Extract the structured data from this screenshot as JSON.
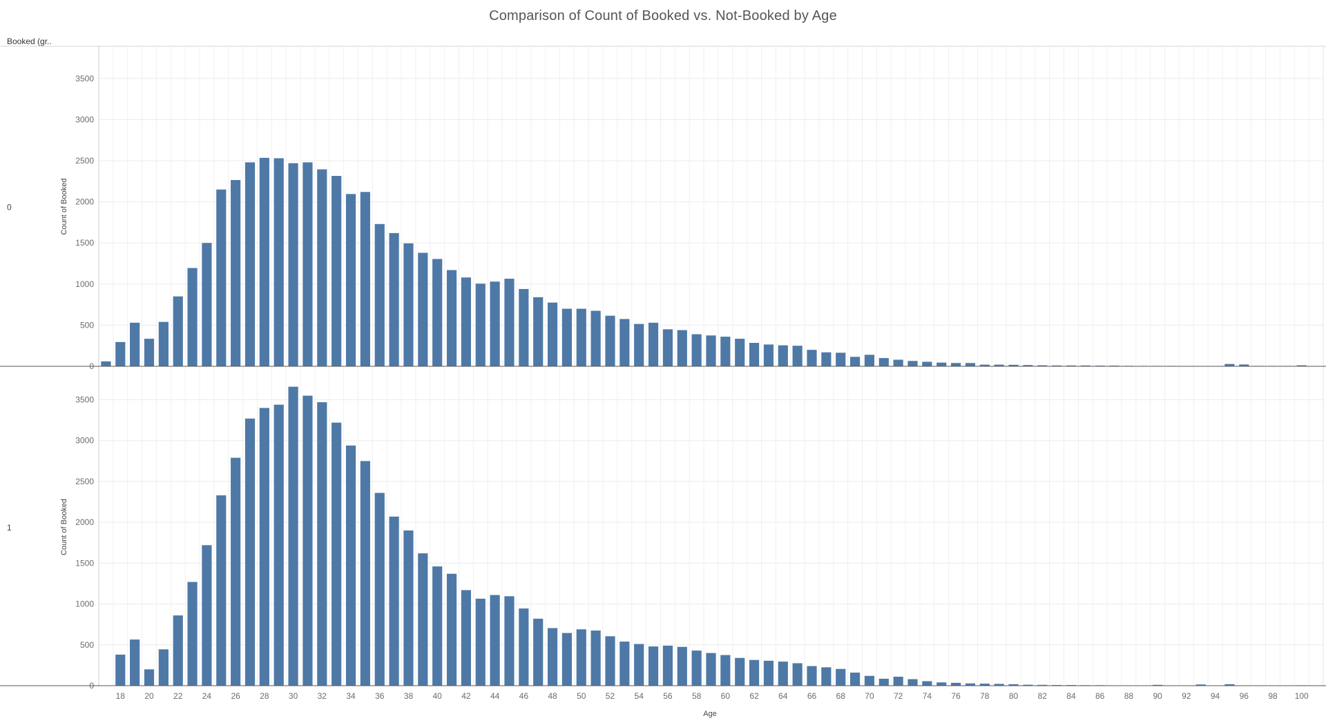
{
  "chart_data": {
    "type": "bar",
    "title": "Comparison of Count of Booked vs. Not-Booked by Age",
    "row_header": "Booked (gr..",
    "xlabel": "Age",
    "ylabel": "Count of Booked",
    "ylim": [
      0,
      3800
    ],
    "y_ticks": [
      0,
      500,
      1000,
      1500,
      2000,
      2500,
      3000,
      3500
    ],
    "grid": true,
    "bar_color": "#4e79a7",
    "x_min": 17,
    "x_max": 101,
    "x_ticks": [
      18,
      20,
      22,
      24,
      26,
      28,
      30,
      32,
      34,
      36,
      38,
      40,
      42,
      44,
      46,
      48,
      50,
      52,
      54,
      56,
      58,
      60,
      62,
      64,
      66,
      68,
      70,
      72,
      74,
      76,
      78,
      80,
      82,
      84,
      86,
      88,
      90,
      92,
      94,
      96,
      98,
      100
    ],
    "panels": [
      {
        "label": "0",
        "points": [
          [
            17,
            60
          ],
          [
            18,
            295
          ],
          [
            19,
            530
          ],
          [
            20,
            335
          ],
          [
            21,
            540
          ],
          [
            22,
            850
          ],
          [
            23,
            1195
          ],
          [
            24,
            1500
          ],
          [
            25,
            2150
          ],
          [
            26,
            2265
          ],
          [
            27,
            2480
          ],
          [
            28,
            2535
          ],
          [
            29,
            2530
          ],
          [
            30,
            2470
          ],
          [
            31,
            2480
          ],
          [
            32,
            2395
          ],
          [
            33,
            2315
          ],
          [
            34,
            2095
          ],
          [
            35,
            2120
          ],
          [
            36,
            1730
          ],
          [
            37,
            1620
          ],
          [
            38,
            1495
          ],
          [
            39,
            1380
          ],
          [
            40,
            1305
          ],
          [
            41,
            1170
          ],
          [
            42,
            1080
          ],
          [
            43,
            1005
          ],
          [
            44,
            1030
          ],
          [
            45,
            1065
          ],
          [
            46,
            940
          ],
          [
            47,
            840
          ],
          [
            48,
            775
          ],
          [
            49,
            700
          ],
          [
            50,
            700
          ],
          [
            51,
            675
          ],
          [
            52,
            615
          ],
          [
            53,
            575
          ],
          [
            54,
            515
          ],
          [
            55,
            530
          ],
          [
            56,
            450
          ],
          [
            57,
            440
          ],
          [
            58,
            390
          ],
          [
            59,
            375
          ],
          [
            60,
            360
          ],
          [
            61,
            335
          ],
          [
            62,
            285
          ],
          [
            63,
            265
          ],
          [
            64,
            255
          ],
          [
            65,
            250
          ],
          [
            66,
            200
          ],
          [
            67,
            170
          ],
          [
            68,
            165
          ],
          [
            69,
            115
          ],
          [
            70,
            140
          ],
          [
            71,
            100
          ],
          [
            72,
            80
          ],
          [
            73,
            65
          ],
          [
            74,
            55
          ],
          [
            75,
            45
          ],
          [
            76,
            40
          ],
          [
            77,
            40
          ],
          [
            78,
            20
          ],
          [
            79,
            20
          ],
          [
            80,
            18
          ],
          [
            81,
            15
          ],
          [
            82,
            12
          ],
          [
            83,
            10
          ],
          [
            84,
            10
          ],
          [
            85,
            10
          ],
          [
            86,
            8
          ],
          [
            87,
            8
          ],
          [
            88,
            6
          ],
          [
            89,
            5
          ],
          [
            90,
            5
          ],
          [
            91,
            5
          ],
          [
            92,
            4
          ],
          [
            93,
            4
          ],
          [
            94,
            3
          ],
          [
            95,
            28
          ],
          [
            96,
            22
          ],
          [
            97,
            5
          ],
          [
            98,
            5
          ],
          [
            99,
            5
          ],
          [
            100,
            12
          ]
        ]
      },
      {
        "label": "1",
        "points": [
          [
            18,
            380
          ],
          [
            19,
            565
          ],
          [
            20,
            200
          ],
          [
            21,
            445
          ],
          [
            22,
            860
          ],
          [
            23,
            1270
          ],
          [
            24,
            1720
          ],
          [
            25,
            2330
          ],
          [
            26,
            2790
          ],
          [
            27,
            3270
          ],
          [
            28,
            3400
          ],
          [
            29,
            3440
          ],
          [
            30,
            3660
          ],
          [
            31,
            3550
          ],
          [
            32,
            3470
          ],
          [
            33,
            3220
          ],
          [
            34,
            2940
          ],
          [
            35,
            2750
          ],
          [
            36,
            2360
          ],
          [
            37,
            2070
          ],
          [
            38,
            1900
          ],
          [
            39,
            1620
          ],
          [
            40,
            1460
          ],
          [
            41,
            1370
          ],
          [
            42,
            1170
          ],
          [
            43,
            1065
          ],
          [
            44,
            1110
          ],
          [
            45,
            1095
          ],
          [
            46,
            945
          ],
          [
            47,
            820
          ],
          [
            48,
            705
          ],
          [
            49,
            645
          ],
          [
            50,
            690
          ],
          [
            51,
            675
          ],
          [
            52,
            605
          ],
          [
            53,
            540
          ],
          [
            54,
            510
          ],
          [
            55,
            480
          ],
          [
            56,
            490
          ],
          [
            57,
            475
          ],
          [
            58,
            430
          ],
          [
            59,
            400
          ],
          [
            60,
            375
          ],
          [
            61,
            340
          ],
          [
            62,
            315
          ],
          [
            63,
            305
          ],
          [
            64,
            295
          ],
          [
            65,
            275
          ],
          [
            66,
            240
          ],
          [
            67,
            225
          ],
          [
            68,
            205
          ],
          [
            69,
            160
          ],
          [
            70,
            120
          ],
          [
            71,
            85
          ],
          [
            72,
            110
          ],
          [
            73,
            80
          ],
          [
            74,
            55
          ],
          [
            75,
            40
          ],
          [
            76,
            35
          ],
          [
            77,
            28
          ],
          [
            78,
            25
          ],
          [
            79,
            22
          ],
          [
            80,
            18
          ],
          [
            81,
            12
          ],
          [
            82,
            10
          ],
          [
            83,
            8
          ],
          [
            84,
            8
          ],
          [
            85,
            6
          ],
          [
            86,
            6
          ],
          [
            87,
            4
          ],
          [
            88,
            3
          ],
          [
            89,
            2
          ],
          [
            90,
            10
          ],
          [
            91,
            2
          ],
          [
            92,
            2
          ],
          [
            93,
            15
          ],
          [
            94,
            2
          ],
          [
            95,
            18
          ],
          [
            96,
            3
          ],
          [
            97,
            2
          ],
          [
            98,
            2
          ],
          [
            99,
            2
          ],
          [
            100,
            5
          ]
        ]
      }
    ]
  }
}
